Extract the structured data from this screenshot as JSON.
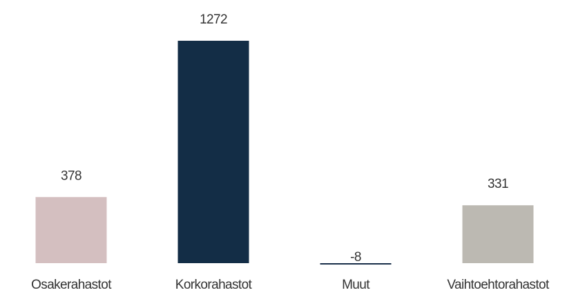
{
  "chart_data": {
    "type": "bar",
    "categories": [
      "Osakerahastot",
      "Korkorahastot",
      "Muut",
      "Vaihtoehtorahastot"
    ],
    "values": [
      378,
      1272,
      -8,
      331
    ],
    "colors": [
      "#d4bfc0",
      "#132d46",
      "#1a2f4a",
      "#bcb9b2"
    ]
  }
}
